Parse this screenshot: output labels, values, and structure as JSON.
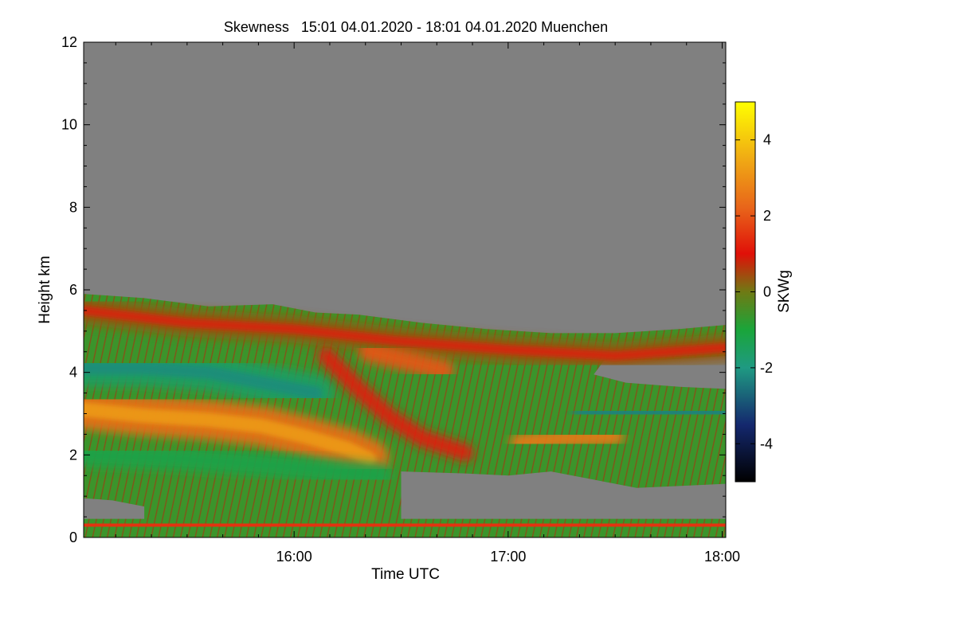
{
  "chart_data": {
    "type": "heatmap",
    "title": "Skewness   15:01 04.01.2020 - 18:01 04.01.2020 Muenchen",
    "xlabel": "Time UTC",
    "ylabel": "Height km",
    "xlim": [
      15.0167,
      18.0167
    ],
    "ylim": [
      0,
      12
    ],
    "x_ticks": [
      {
        "value": 16.0,
        "label": "16:00"
      },
      {
        "value": 17.0,
        "label": "17:00"
      },
      {
        "value": 18.0,
        "label": "18:00"
      }
    ],
    "y_ticks": [
      {
        "value": 0,
        "label": "0"
      },
      {
        "value": 2,
        "label": "2"
      },
      {
        "value": 4,
        "label": "4"
      },
      {
        "value": 6,
        "label": "6"
      },
      {
        "value": 8,
        "label": "8"
      },
      {
        "value": 10,
        "label": "10"
      },
      {
        "value": 12,
        "label": "12"
      }
    ],
    "colorbar": {
      "label": "SKWg",
      "range": [
        -5,
        5
      ],
      "ticks": [
        {
          "value": 4,
          "label": "4"
        },
        {
          "value": 2,
          "label": "2"
        },
        {
          "value": 0,
          "label": "0"
        },
        {
          "value": -2,
          "label": "-2"
        },
        {
          "value": -4,
          "label": "-4"
        }
      ],
      "colors": [
        {
          "value": -5,
          "color": "#000000"
        },
        {
          "value": -3.5,
          "color": "#14286e"
        },
        {
          "value": -2,
          "color": "#1f9a82"
        },
        {
          "value": -1,
          "color": "#1aa53a"
        },
        {
          "value": 0,
          "color": "#6f7a14"
        },
        {
          "value": 1,
          "color": "#e01008"
        },
        {
          "value": 2.2,
          "color": "#e8641a"
        },
        {
          "value": 3.5,
          "color": "#f0aa14"
        },
        {
          "value": 5,
          "color": "#ffff00"
        }
      ],
      "nodata_color": "#808080"
    },
    "features": [
      {
        "name": "cloud top boundary",
        "points": [
          [
            15.017,
            5.9
          ],
          [
            15.3,
            5.8
          ],
          [
            15.6,
            5.6
          ],
          [
            15.9,
            5.65
          ],
          [
            16.1,
            5.45
          ],
          [
            16.3,
            5.4
          ],
          [
            16.6,
            5.2
          ],
          [
            16.9,
            5.05
          ],
          [
            17.2,
            4.95
          ],
          [
            17.5,
            4.95
          ],
          [
            17.8,
            5.05
          ],
          [
            18.017,
            5.15
          ]
        ]
      },
      {
        "name": "upper neutral band",
        "value": 0.3,
        "points": [
          [
            15.017,
            5.5
          ],
          [
            15.5,
            5.2
          ],
          [
            16.0,
            5.05
          ],
          [
            16.5,
            4.75
          ],
          [
            17.0,
            4.55
          ],
          [
            17.5,
            4.4
          ],
          [
            18.017,
            4.6
          ]
        ]
      },
      {
        "name": "negative layer upper",
        "value": -1.6,
        "points": [
          [
            15.017,
            4.1
          ],
          [
            15.3,
            4.1
          ],
          [
            15.6,
            4.0
          ],
          [
            15.9,
            3.7
          ],
          [
            16.1,
            3.5
          ]
        ]
      },
      {
        "name": "main positive layer",
        "value": 2.4,
        "points": [
          [
            15.017,
            3.1
          ],
          [
            15.3,
            2.95
          ],
          [
            15.6,
            2.85
          ],
          [
            15.85,
            2.7
          ],
          [
            16.05,
            2.45
          ],
          [
            16.25,
            2.15
          ],
          [
            16.35,
            1.9
          ]
        ]
      },
      {
        "name": "fall streak",
        "value": 1.2,
        "points": [
          [
            16.15,
            4.4
          ],
          [
            16.3,
            3.6
          ],
          [
            16.45,
            2.9
          ],
          [
            16.6,
            2.4
          ],
          [
            16.8,
            2.05
          ]
        ]
      },
      {
        "name": "positive patch 16:30",
        "value": 2.0,
        "points": [
          [
            16.35,
            4.5
          ],
          [
            16.55,
            4.25
          ],
          [
            16.7,
            4.05
          ]
        ]
      },
      {
        "name": "positive layer 17:10",
        "value": 2.6,
        "points": [
          [
            17.05,
            2.3
          ],
          [
            17.25,
            2.4
          ],
          [
            17.5,
            2.45
          ]
        ]
      },
      {
        "name": "negative layer right",
        "value": -2.3,
        "points": [
          [
            17.35,
            3.0
          ],
          [
            17.7,
            3.0
          ],
          [
            18.017,
            3.05
          ]
        ]
      },
      {
        "name": "lower negative band",
        "value": -1.2,
        "points": [
          [
            15.017,
            2.0
          ],
          [
            15.5,
            1.9
          ],
          [
            16.0,
            1.7
          ],
          [
            16.4,
            1.5
          ]
        ]
      },
      {
        "name": "surface positive line",
        "value": 1.5,
        "points": [
          [
            15.017,
            0.3
          ],
          [
            18.017,
            0.3
          ]
        ]
      }
    ]
  }
}
